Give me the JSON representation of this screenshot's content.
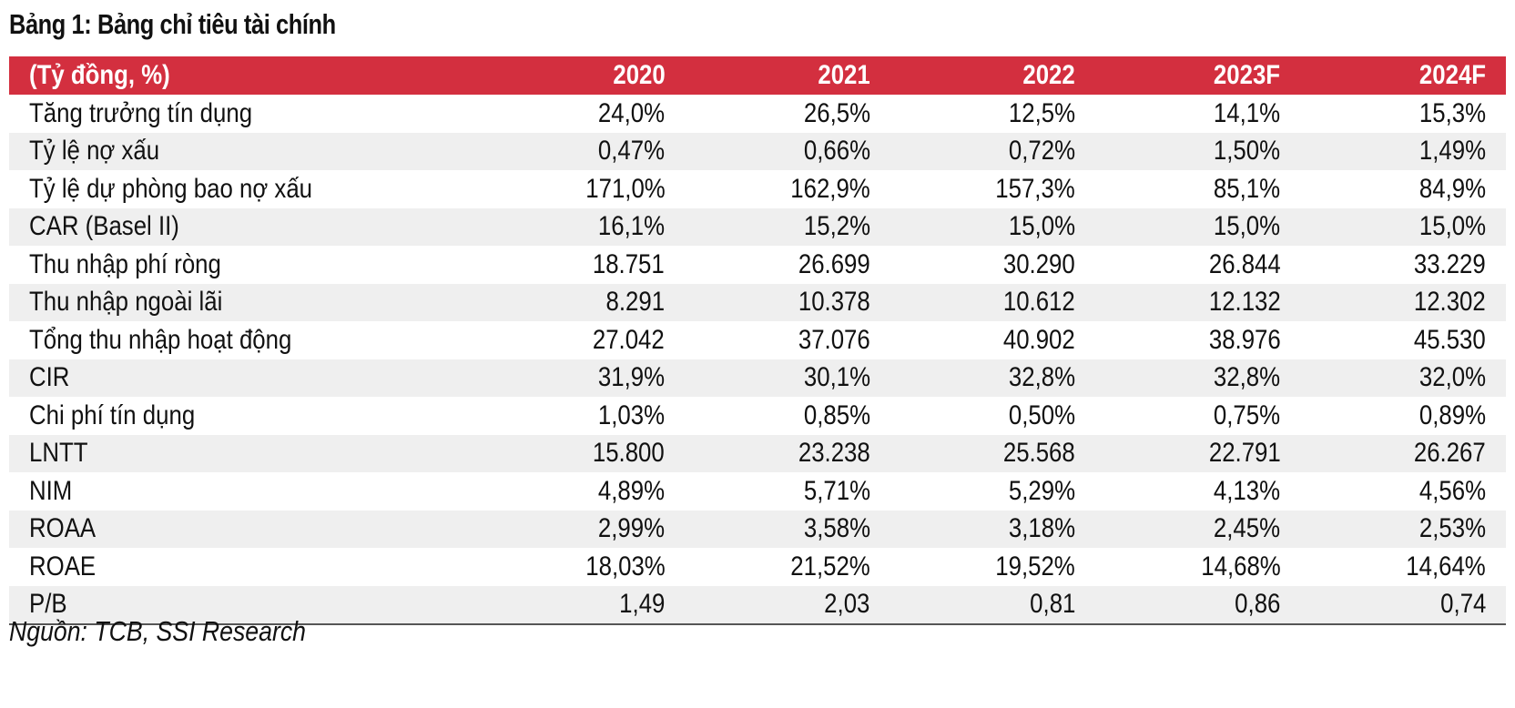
{
  "title": "Bảng 1: Bảng chỉ tiêu tài chính",
  "table": {
    "unit_header": "(Tỷ đồng, %)",
    "years": [
      "2020",
      "2021",
      "2022",
      "2023F",
      "2024F"
    ],
    "rows": [
      {
        "label": "Tăng trưởng tín dụng",
        "values": [
          "24,0%",
          "26,5%",
          "12,5%",
          "14,1%",
          "15,3%"
        ]
      },
      {
        "label": "Tỷ lệ nợ xấu",
        "values": [
          "0,47%",
          "0,66%",
          "0,72%",
          "1,50%",
          "1,49%"
        ]
      },
      {
        "label": "Tỷ lệ dự phòng bao nợ xấu",
        "values": [
          "171,0%",
          "162,9%",
          "157,3%",
          "85,1%",
          "84,9%"
        ]
      },
      {
        "label": "CAR (Basel II)",
        "values": [
          "16,1%",
          "15,2%",
          "15,0%",
          "15,0%",
          "15,0%"
        ]
      },
      {
        "label": "Thu nhập phí ròng",
        "values": [
          "18.751",
          "26.699",
          "30.290",
          "26.844",
          "33.229"
        ]
      },
      {
        "label": "Thu nhập ngoài lãi",
        "values": [
          "8.291",
          "10.378",
          "10.612",
          "12.132",
          "12.302"
        ]
      },
      {
        "label": "Tổng thu nhập hoạt động",
        "values": [
          "27.042",
          "37.076",
          "40.902",
          "38.976",
          "45.530"
        ]
      },
      {
        "label": "CIR",
        "values": [
          "31,9%",
          "30,1%",
          "32,8%",
          "32,8%",
          "32,0%"
        ]
      },
      {
        "label": "Chi phí tín dụng",
        "values": [
          "1,03%",
          "0,85%",
          "0,50%",
          "0,75%",
          "0,89%"
        ]
      },
      {
        "label": "LNTT",
        "values": [
          "15.800",
          "23.238",
          "25.568",
          "22.791",
          "26.267"
        ]
      },
      {
        "label": "NIM",
        "values": [
          "4,89%",
          "5,71%",
          "5,29%",
          "4,13%",
          "4,56%"
        ]
      },
      {
        "label": "ROAA",
        "values": [
          "2,99%",
          "3,58%",
          "3,18%",
          "2,45%",
          "2,53%"
        ]
      },
      {
        "label": "ROAE",
        "values": [
          "18,03%",
          "21,52%",
          "19,52%",
          "14,68%",
          "14,64%"
        ]
      },
      {
        "label": "P/B",
        "values": [
          "1,49",
          "2,03",
          "0,81",
          "0,86",
          "0,74"
        ]
      }
    ]
  },
  "source": "Nguồn: TCB, SSI Research",
  "colors": {
    "header_background": "#d32f3f",
    "header_text": "#ffffff",
    "alternate_row_background": "#efefef"
  }
}
